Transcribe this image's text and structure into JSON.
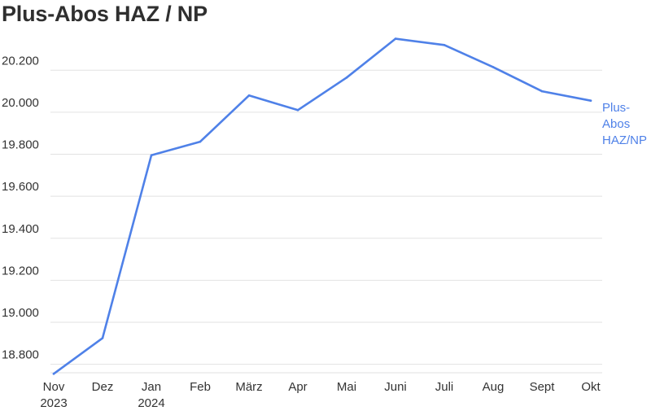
{
  "title": "Plus-Abos HAZ / NP",
  "colors": {
    "series": "#4f81e8",
    "grid": "#e2e2e2",
    "text": "#333333"
  },
  "chart_data": {
    "type": "line",
    "title": "Plus-Abos HAZ / NP",
    "xlabel": "",
    "ylabel": "",
    "categories": [
      [
        "Nov",
        "2023"
      ],
      [
        "Dez"
      ],
      [
        "Jan",
        "2024"
      ],
      [
        "Feb"
      ],
      [
        "März"
      ],
      [
        "Apr"
      ],
      [
        "Mai"
      ],
      [
        "Juni"
      ],
      [
        "Juli"
      ],
      [
        "Aug"
      ],
      [
        "Sept"
      ],
      [
        "Okt"
      ]
    ],
    "yticks": [
      18800,
      19000,
      19200,
      19400,
      19600,
      19800,
      20000,
      20200
    ],
    "ytick_labels": [
      "18.800",
      "19.000",
      "19.200",
      "19.400",
      "19.600",
      "19.800",
      "20.000",
      "20.200"
    ],
    "ylim": [
      18760,
      20360
    ],
    "grid": "horizontal",
    "series": [
      {
        "name": "Plus-Abos HAZ/NP",
        "label_lines": [
          "Plus-",
          "Abos",
          "HAZ/NP"
        ],
        "values": [
          18755,
          18925,
          19795,
          19860,
          20080,
          20010,
          20165,
          20350,
          20320,
          20215,
          20100,
          20055
        ]
      }
    ]
  }
}
